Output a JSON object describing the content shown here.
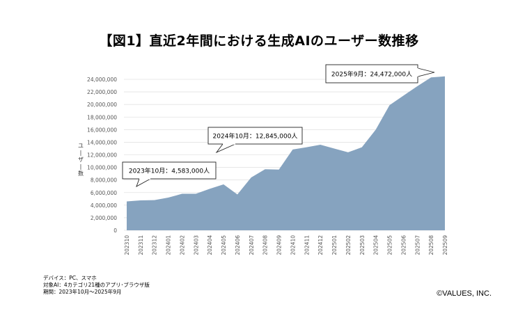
{
  "title": "【図1】直近2年間における生成AIのユーザー数推移",
  "notes": [
    "デバイス：PC、スマホ",
    "対象AI：4カテゴリ21種のアプリ･ブラウザ版",
    "期間：2023年10月～2025年9月"
  ],
  "copyright": "©VALUES, INC.",
  "chart_data": {
    "type": "area",
    "ylabel": "ユーザー数",
    "ylim": [
      0,
      24000000
    ],
    "yticks": [
      0,
      2000000,
      4000000,
      6000000,
      8000000,
      10000000,
      12000000,
      14000000,
      16000000,
      18000000,
      20000000,
      22000000,
      24000000
    ],
    "ytick_labels": [
      "0",
      "2,000,000",
      "4,000,000",
      "6,000,000",
      "8,000,000",
      "10,000,000",
      "12,000,000",
      "14,000,000",
      "16,000,000",
      "18,000,000",
      "20,000,000",
      "22,000,000",
      "24,000,000"
    ],
    "categories": [
      "202310",
      "202311",
      "202312",
      "202401",
      "202402",
      "202403",
      "202404",
      "202405",
      "202406",
      "202407",
      "202408",
      "202409",
      "202410",
      "202411",
      "202412",
      "202501",
      "202502",
      "202503",
      "202504",
      "202505",
      "202506",
      "202507",
      "202508",
      "202509"
    ],
    "values": [
      4583000,
      4750000,
      4800000,
      5200000,
      5800000,
      5800000,
      6600000,
      7300000,
      5700000,
      8400000,
      9700000,
      9650000,
      12845000,
      13200000,
      13600000,
      13000000,
      12400000,
      13200000,
      16000000,
      19900000,
      21400000,
      22900000,
      24300000,
      24472000
    ],
    "color": "#86a3bf",
    "grid": true,
    "annotations": [
      {
        "label": "2023年10月：4,583,000人",
        "category": "202310"
      },
      {
        "label": "2024年10月：12,845,000人",
        "category": "202410"
      },
      {
        "label": "2025年9月：24,472,000人",
        "category": "202509"
      }
    ]
  }
}
